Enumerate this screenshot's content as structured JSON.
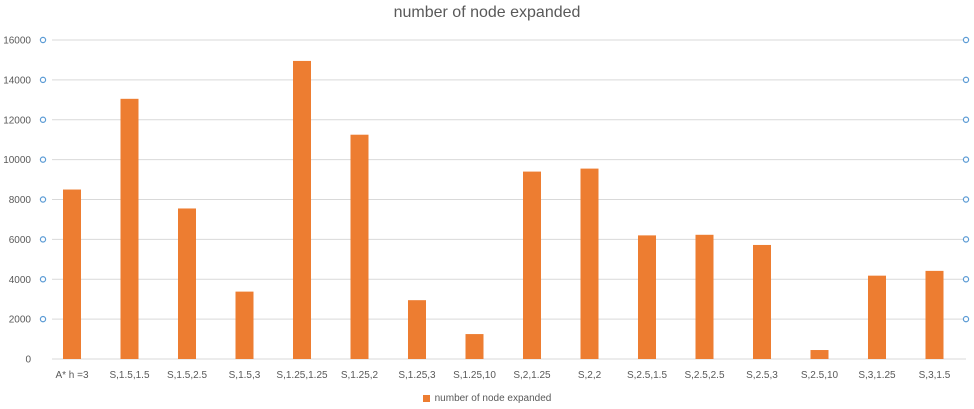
{
  "chart_data": {
    "type": "bar",
    "title": "number of node expanded",
    "xlabel": "",
    "ylabel": "",
    "categories": [
      "A* h =3",
      "S,1.5,1.5",
      "S,1.5,2.5",
      "S,1.5,3",
      "S,1.25,1.25",
      "S,1.25,2",
      "S,1.25,3",
      "S,1.25,10",
      "S,2,1.25",
      "S,2,2",
      "S,2.5,1.5",
      "S,2.5,2.5",
      "S,2.5,3",
      "S,2.5,10",
      "S,3,1.25",
      "S,3,1.5"
    ],
    "series": [
      {
        "name": "number of node expanded",
        "values": [
          8500,
          13050,
          7550,
          3380,
          14950,
          11250,
          2950,
          1250,
          9400,
          9550,
          6200,
          6230,
          5720,
          450,
          4180,
          4420
        ]
      }
    ],
    "ylim": [
      0,
      16000
    ],
    "yticks": [
      0,
      2000,
      4000,
      6000,
      8000,
      10000,
      12000,
      14000,
      16000
    ],
    "grid": true,
    "legend_position": "bottom",
    "colors": {
      "bar": "#ED7D31",
      "grid": "#D9D9D9",
      "marker": "#5B9BD5",
      "text": "#595959"
    }
  }
}
